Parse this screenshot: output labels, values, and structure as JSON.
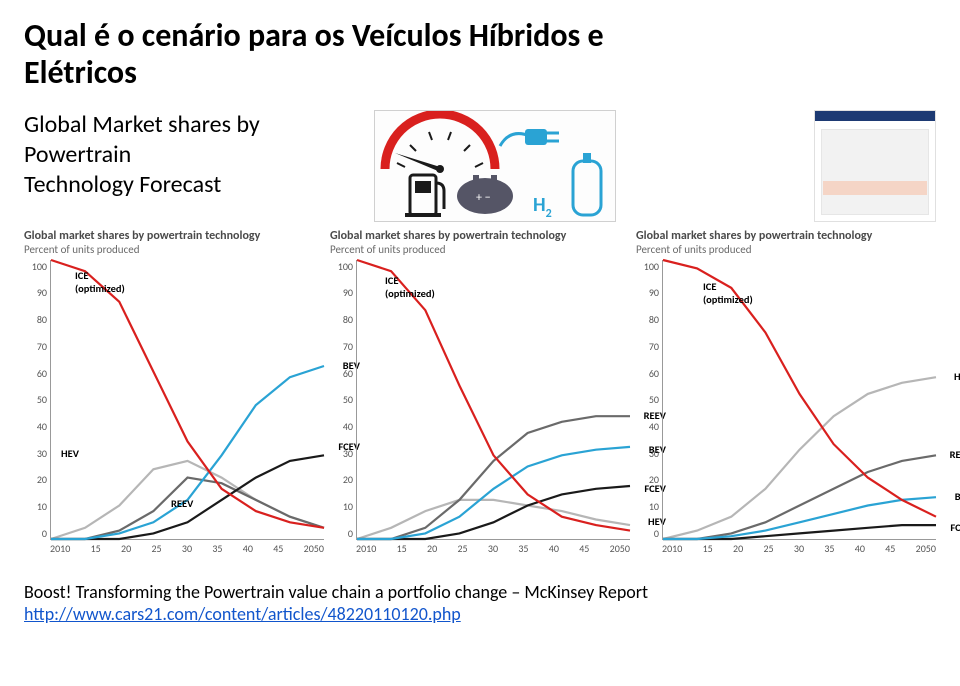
{
  "title_line1": "Qual é o cenário para os Veículos Híbridos e",
  "title_line2": "Elétricos",
  "subtitle_line1": "Global Market shares by Powertrain",
  "subtitle_line2": "Technology Forecast",
  "icon_h2_label": "H",
  "icon_h2_sub": "2",
  "chart_header": "Global market shares by powertrain technology",
  "chart_subheader": "Percent of units produced",
  "yticks": [
    "100",
    "90",
    "80",
    "70",
    "60",
    "50",
    "40",
    "30",
    "20",
    "10",
    "0"
  ],
  "xticks": [
    "2010",
    "15",
    "20",
    "25",
    "30",
    "35",
    "40",
    "45",
    "2050"
  ],
  "line_width": 2.2,
  "colors": {
    "ICE": "#d9201e",
    "HEV": "#b6b6b6",
    "REEV": "#6a6a6a",
    "BEV": "#2aa3d4",
    "FCEV": "#1a1a1a",
    "axis_text": "#555555",
    "title_text": "#4a4a4a"
  },
  "series_labels": {
    "ICE1": "ICE",
    "ICE2": "(optimized)",
    "HEV": "HEV",
    "REEV": "REEV",
    "BEV": "BEV",
    "FCEV": "FCEV"
  },
  "charts": [
    {
      "series": {
        "ICE": {
          "x": [
            2010,
            2015,
            2020,
            2025,
            2030,
            2035,
            2040,
            2045,
            2050
          ],
          "y": [
            100,
            96,
            85,
            60,
            35,
            18,
            10,
            6,
            4
          ]
        },
        "HEV": {
          "x": [
            2010,
            2015,
            2020,
            2025,
            2030,
            2035,
            2040,
            2045,
            2050
          ],
          "y": [
            0,
            4,
            12,
            25,
            28,
            22,
            14,
            8,
            4
          ]
        },
        "REEV": {
          "x": [
            2010,
            2015,
            2020,
            2025,
            2030,
            2035,
            2040,
            2045,
            2050
          ],
          "y": [
            0,
            0,
            3,
            10,
            22,
            20,
            14,
            8,
            4
          ]
        },
        "BEV": {
          "x": [
            2010,
            2015,
            2020,
            2025,
            2030,
            2035,
            2040,
            2045,
            2050
          ],
          "y": [
            0,
            0,
            2,
            6,
            14,
            30,
            48,
            58,
            62
          ]
        },
        "FCEV": {
          "x": [
            2010,
            2015,
            2020,
            2025,
            2030,
            2035,
            2040,
            2045,
            2050
          ],
          "y": [
            0,
            0,
            0,
            2,
            6,
            14,
            22,
            28,
            30
          ]
        }
      },
      "label_pos": {
        "ICE": {
          "right_y": 94,
          "x_off": 24
        },
        "HEV": {
          "right_y": 30,
          "x_off": 10,
          "at_left": true
        },
        "REEV": {
          "right_y": 12,
          "x_off": 120,
          "at_left": true
        },
        "BEV": {
          "right_y": 62
        },
        "FCEV": {
          "right_y": 33
        }
      }
    },
    {
      "series": {
        "ICE": {
          "x": [
            2010,
            2015,
            2020,
            2025,
            2030,
            2035,
            2040,
            2045,
            2050
          ],
          "y": [
            100,
            96,
            82,
            55,
            30,
            16,
            8,
            5,
            3
          ]
        },
        "HEV": {
          "x": [
            2010,
            2015,
            2020,
            2025,
            2030,
            2035,
            2040,
            2045,
            2050
          ],
          "y": [
            0,
            4,
            10,
            14,
            14,
            12,
            10,
            7,
            5
          ]
        },
        "REEV": {
          "x": [
            2010,
            2015,
            2020,
            2025,
            2030,
            2035,
            2040,
            2045,
            2050
          ],
          "y": [
            0,
            0,
            4,
            14,
            28,
            38,
            42,
            44,
            44
          ]
        },
        "BEV": {
          "x": [
            2010,
            2015,
            2020,
            2025,
            2030,
            2035,
            2040,
            2045,
            2050
          ],
          "y": [
            0,
            0,
            2,
            8,
            18,
            26,
            30,
            32,
            33
          ]
        },
        "FCEV": {
          "x": [
            2010,
            2015,
            2020,
            2025,
            2030,
            2035,
            2040,
            2045,
            2050
          ],
          "y": [
            0,
            0,
            0,
            2,
            6,
            12,
            16,
            18,
            19
          ]
        }
      },
      "label_pos": {
        "ICE": {
          "right_y": 92,
          "x_off": 28
        },
        "HEV": {
          "right_y": 6
        },
        "REEV": {
          "right_y": 44
        },
        "BEV": {
          "right_y": 32
        },
        "FCEV": {
          "right_y": 18
        }
      }
    },
    {
      "series": {
        "ICE": {
          "x": [
            2010,
            2015,
            2020,
            2025,
            2030,
            2035,
            2040,
            2045,
            2050
          ],
          "y": [
            100,
            97,
            90,
            74,
            52,
            34,
            22,
            14,
            8
          ]
        },
        "HEV": {
          "x": [
            2010,
            2015,
            2020,
            2025,
            2030,
            2035,
            2040,
            2045,
            2050
          ],
          "y": [
            0,
            3,
            8,
            18,
            32,
            44,
            52,
            56,
            58
          ]
        },
        "REEV": {
          "x": [
            2010,
            2015,
            2020,
            2025,
            2030,
            2035,
            2040,
            2045,
            2050
          ],
          "y": [
            0,
            0,
            2,
            6,
            12,
            18,
            24,
            28,
            30
          ]
        },
        "BEV": {
          "x": [
            2010,
            2015,
            2020,
            2025,
            2030,
            2035,
            2040,
            2045,
            2050
          ],
          "y": [
            0,
            0,
            1,
            3,
            6,
            9,
            12,
            14,
            15
          ]
        },
        "FCEV": {
          "x": [
            2010,
            2015,
            2020,
            2025,
            2030,
            2035,
            2040,
            2045,
            2050
          ],
          "y": [
            0,
            0,
            0,
            1,
            2,
            3,
            4,
            5,
            5
          ]
        }
      },
      "label_pos": {
        "ICE": {
          "right_y": 90,
          "x_off": 40
        },
        "HEV": {
          "right_y": 58
        },
        "REEV": {
          "right_y": 30
        },
        "BEV": {
          "right_y": 15
        },
        "FCEV": {
          "right_y": 4
        }
      }
    }
  ],
  "footer_text": "Boost! Transforming the Powertrain value chain a portfolio change – McKinsey Report",
  "footer_link": "http://www.cars21.com/content/articles/48220110120.php"
}
